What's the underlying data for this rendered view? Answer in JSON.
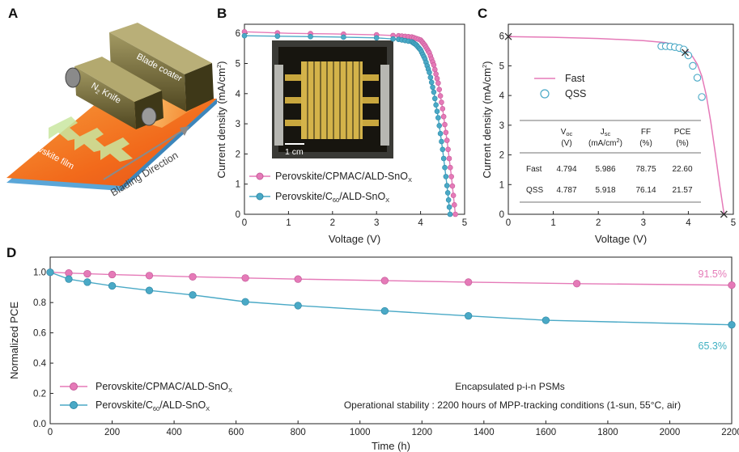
{
  "panels": {
    "a": {
      "label": "A",
      "blade_coater": "Blade coater",
      "knife_main": "N",
      "knife_sub": "2",
      "knife_rest": " Knife",
      "film": "Perovskite film",
      "direction": "Blading Direction",
      "colors": {
        "film_top": "#f26a1b",
        "film_side": "#5aa6d8",
        "blade": "#6b5f2b"
      }
    },
    "b": {
      "label": "B",
      "inset_scale": "1 cm",
      "legend": [
        {
          "main": "Perovskite/CPMAC/ALD-SnO",
          "sub": "X"
        },
        {
          "main": "Perovskite/C",
          "sub": "60",
          "rest": "/ALD-SnO",
          "sub2": "X"
        }
      ]
    },
    "c": {
      "label": "C",
      "legend": [
        "Fast",
        "QSS"
      ],
      "table": {
        "headers": [
          {
            "main": "V",
            "sub": "oc",
            "unit": "(V)"
          },
          {
            "main": "J",
            "sub": "sc",
            "unit": "(mA/cm",
            "sup": "2",
            "unit_end": ")"
          },
          {
            "main": "FF",
            "unit": "(%)"
          },
          {
            "main": "PCE",
            "unit": "(%)"
          }
        ],
        "rows": [
          {
            "label": "Fast",
            "voc": "4.794",
            "jsc": "5.986",
            "ff": "78.75",
            "pce": "22.60"
          },
          {
            "label": "QSS",
            "voc": "4.787",
            "jsc": "5.918",
            "ff": "76.14",
            "pce": "21.57"
          }
        ]
      }
    },
    "d": {
      "label": "D",
      "legend": [
        {
          "main": "Perovskite/CPMAC/ALD-SnO",
          "sub": "X"
        },
        {
          "main": "Perovskite/C",
          "sub": "60",
          "rest": "/ALD-SnO",
          "sub2": "X"
        }
      ],
      "annotation_1": "Encapsulated p-i-n PSMs",
      "annotation_2": "Operational stability : 2200 hours of MPP-tracking conditions (1-sun, 55°C, air)",
      "end_label_pink": "91.5%",
      "end_label_blue": "65.3%"
    }
  },
  "chart_data": [
    {
      "type": "line",
      "panel": "B",
      "xlabel": "Voltage (V)",
      "ylabel": "Current density (mA/cm2)",
      "xlim": [
        0,
        5
      ],
      "ylim": [
        0,
        6.3
      ],
      "xticks": [
        0,
        1,
        2,
        3,
        4,
        5
      ],
      "yticks": [
        0,
        1,
        2,
        3,
        4,
        5,
        6
      ],
      "series": [
        {
          "name": "Perovskite/CPMAC/ALD-SnOX",
          "color": "#e57ab8",
          "x": [
            0,
            1,
            2,
            3,
            3.5,
            3.8,
            4.0,
            4.1,
            4.2,
            4.3,
            4.4,
            4.5,
            4.6,
            4.7,
            4.79
          ],
          "y": [
            6.05,
            6.0,
            5.98,
            5.95,
            5.92,
            5.88,
            5.78,
            5.6,
            5.35,
            4.95,
            4.35,
            3.5,
            2.45,
            1.25,
            0
          ]
        },
        {
          "name": "Perovskite/C60/ALD-SnOX",
          "color": "#4aa9c6",
          "x": [
            0,
            1,
            2,
            3,
            3.5,
            3.8,
            3.9,
            4.0,
            4.1,
            4.2,
            4.3,
            4.4,
            4.5,
            4.6,
            4.67
          ],
          "y": [
            5.92,
            5.9,
            5.88,
            5.85,
            5.8,
            5.72,
            5.62,
            5.45,
            5.15,
            4.7,
            4.05,
            3.2,
            2.15,
            0.95,
            0
          ]
        }
      ]
    },
    {
      "type": "line",
      "panel": "C",
      "xlabel": "Voltage (V)",
      "ylabel": "Current density (mA/cm2)",
      "xlim": [
        0,
        5
      ],
      "ylim": [
        0,
        6.4
      ],
      "xticks": [
        0,
        1,
        2,
        3,
        4,
        5
      ],
      "yticks": [
        0,
        1,
        2,
        3,
        4,
        5,
        6
      ],
      "series": [
        {
          "name": "Fast",
          "color": "#e57ab8",
          "x": [
            0,
            1,
            2,
            3,
            3.5,
            3.8,
            4.0,
            4.1,
            4.2,
            4.3,
            4.4,
            4.5,
            4.6,
            4.7,
            4.794
          ],
          "y": [
            5.986,
            5.96,
            5.92,
            5.85,
            5.78,
            5.66,
            5.48,
            5.3,
            5.05,
            4.65,
            4.0,
            3.1,
            2.05,
            0.95,
            0
          ]
        },
        {
          "name": "QSS",
          "color": "#4aa9c6",
          "x": [
            3.4,
            3.5,
            3.6,
            3.7,
            3.8,
            3.9,
            4.0,
            4.1,
            4.2,
            4.3
          ],
          "y": [
            5.66,
            5.66,
            5.65,
            5.63,
            5.6,
            5.55,
            5.35,
            5.0,
            4.6,
            3.95
          ]
        },
        {
          "name": "markers",
          "color": "#333333",
          "x": [
            0,
            3.93,
            4.79
          ],
          "y": [
            5.986,
            5.45,
            0
          ]
        }
      ]
    },
    {
      "type": "line",
      "panel": "D",
      "xlabel": "Time (h)",
      "ylabel": "Normalized PCE",
      "xlim": [
        0,
        2200
      ],
      "ylim": [
        0,
        1.1
      ],
      "xticks": [
        0,
        200,
        400,
        600,
        800,
        1000,
        1200,
        1400,
        1600,
        1800,
        2000,
        2200
      ],
      "yticks": [
        0.0,
        0.2,
        0.4,
        0.6,
        0.8,
        1.0
      ],
      "series": [
        {
          "name": "Perovskite/CPMAC/ALD-SnOX",
          "color": "#e57ab8",
          "x": [
            0,
            60,
            120,
            200,
            320,
            460,
            630,
            800,
            1080,
            1350,
            1700,
            2200
          ],
          "y": [
            1.0,
            0.995,
            0.99,
            0.985,
            0.978,
            0.97,
            0.962,
            0.955,
            0.945,
            0.935,
            0.925,
            0.915
          ]
        },
        {
          "name": "Perovskite/C60/ALD-SnOX",
          "color": "#4aa9c6",
          "x": [
            0,
            60,
            120,
            200,
            320,
            460,
            630,
            800,
            1080,
            1350,
            1600,
            2200
          ],
          "y": [
            1.0,
            0.955,
            0.935,
            0.91,
            0.88,
            0.85,
            0.805,
            0.78,
            0.745,
            0.712,
            0.683,
            0.653
          ]
        }
      ]
    }
  ]
}
